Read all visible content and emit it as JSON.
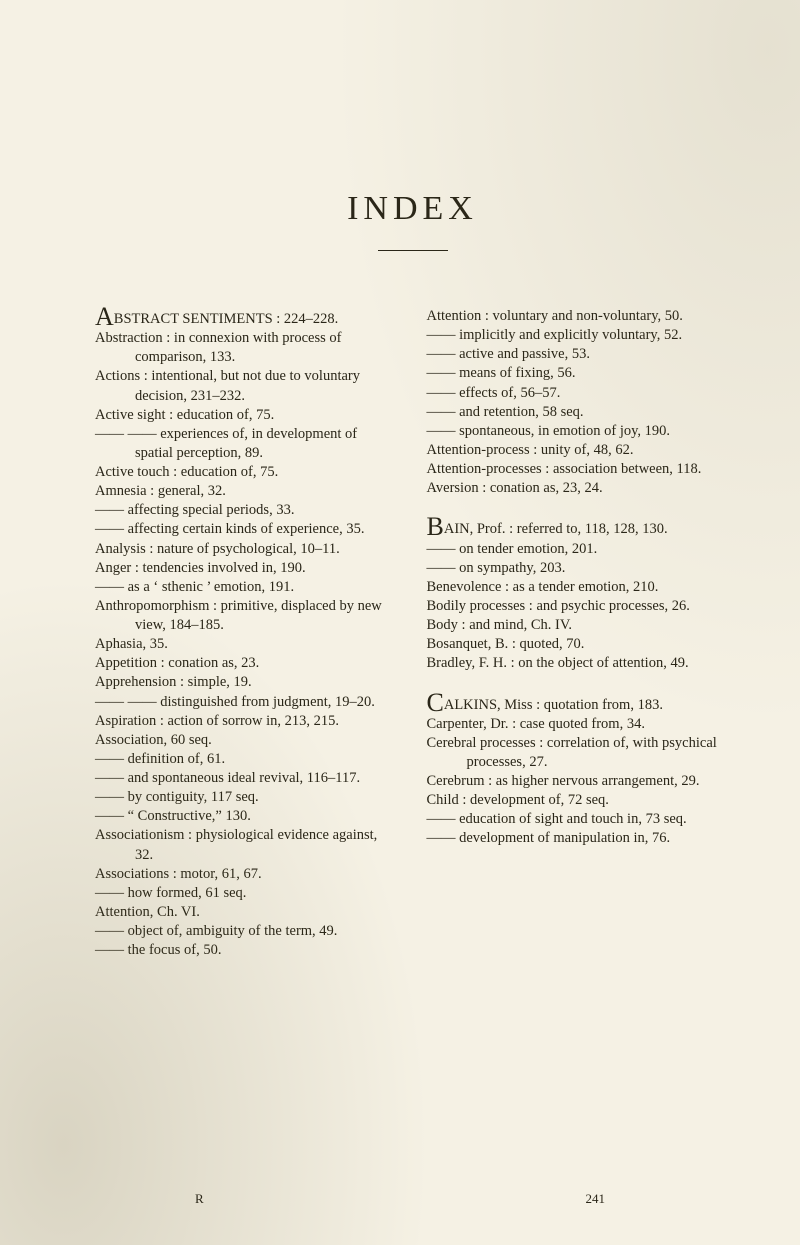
{
  "title": "INDEX",
  "signature": {
    "letter": "R",
    "page": "241"
  },
  "left": [
    {
      "dropcap": "A",
      "text": "BSTRACT SENTIMENTS : 224–228."
    },
    {
      "text": "Abstraction : in connexion with process of comparison, 133."
    },
    {
      "text": "Actions : intentional, but not due to voluntary decision, 231–232."
    },
    {
      "text": "Active sight : education of, 75."
    },
    {
      "text": "—— —— experiences of, in development of spatial perception, 89."
    },
    {
      "text": "Active touch : education of, 75."
    },
    {
      "text": "Amnesia : general, 32."
    },
    {
      "text": "—— affecting special periods, 33."
    },
    {
      "text": "—— affecting certain kinds of experience, 35."
    },
    {
      "text": "Analysis : nature of psychological, 10–11."
    },
    {
      "text": "Anger : tendencies involved in, 190."
    },
    {
      "text": "—— as a ‘ sthenic ’ emotion, 191."
    },
    {
      "text": "Anthropomorphism : primitive, displaced by new view, 184–185."
    },
    {
      "text": "Aphasia, 35."
    },
    {
      "text": "Appetition : conation as, 23."
    },
    {
      "text": "Apprehension : simple, 19."
    },
    {
      "text": "—— —— distinguished from judgment, 19–20."
    },
    {
      "text": "Aspiration : action of sorrow in, 213, 215."
    },
    {
      "text": "Association, 60 seq."
    },
    {
      "text": "—— definition of, 61."
    },
    {
      "text": "—— and spontaneous ideal revival, 116–117."
    },
    {
      "text": "—— by contiguity, 117 seq."
    },
    {
      "text": "—— “ Constructive,” 130."
    },
    {
      "text": "Associationism : physiological evidence against, 32."
    },
    {
      "text": "Associations : motor, 61, 67."
    },
    {
      "text": "—— how formed, 61 seq."
    },
    {
      "text": "Attention, Ch. VI."
    },
    {
      "text": "—— object of, ambiguity of the term, 49."
    },
    {
      "text": "—— the focus of, 50."
    }
  ],
  "right": [
    {
      "text": "Attention : voluntary and non-voluntary, 50."
    },
    {
      "text": "—— implicitly and explicitly voluntary, 52."
    },
    {
      "text": "—— active and passive, 53."
    },
    {
      "text": "—— means of fixing, 56."
    },
    {
      "text": "—— effects of, 56–57."
    },
    {
      "text": "—— and retention, 58 seq."
    },
    {
      "text": "—— spontaneous, in emotion of joy, 190."
    },
    {
      "text": "Attention-process : unity of, 48, 62."
    },
    {
      "text": "Attention-processes : association between, 118."
    },
    {
      "text": "Aversion : conation as, 23, 24."
    },
    {
      "blank": true
    },
    {
      "dropcap": "B",
      "text": "AIN, Prof. : referred to, 118, 128, 130."
    },
    {
      "text": "—— on tender emotion, 201."
    },
    {
      "text": "—— on sympathy, 203."
    },
    {
      "text": "Benevolence : as a tender emotion, 210."
    },
    {
      "text": "Bodily processes : and psychic processes, 26."
    },
    {
      "text": "Body : and mind, Ch. IV."
    },
    {
      "text": "Bosanquet, B. : quoted, 70."
    },
    {
      "text": "Bradley, F. H. : on the object of attention, 49."
    },
    {
      "blank": true
    },
    {
      "dropcap": "C",
      "text": "ALKINS, Miss : quotation from, 183."
    },
    {
      "text": "Carpenter, Dr. : case quoted from, 34."
    },
    {
      "text": "Cerebral processes : correlation of, with psychical processes, 27."
    },
    {
      "text": "Cerebrum : as higher nervous arrangement, 29."
    },
    {
      "text": "Child : development of, 72 seq."
    },
    {
      "text": "—— education of sight and touch in, 73 seq."
    },
    {
      "text": "—— development of manipulation in, 76."
    }
  ]
}
